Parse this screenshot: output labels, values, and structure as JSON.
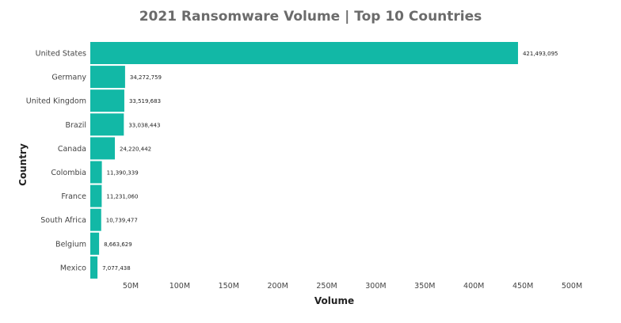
{
  "title": "2021 Ransomware Volume | Top 10 Countries",
  "colors": {
    "bar": "#12b8a6"
  },
  "chart_data": {
    "type": "bar",
    "orientation": "horizontal",
    "title": "2021 Ransomware Volume | Top 10 Countries",
    "xlabel": "Volume",
    "ylabel": "Country",
    "categories": [
      "United States",
      "Germany",
      "United Kingdom",
      "Brazil",
      "Canada",
      "Colombia",
      "France",
      "South Africa",
      "Belgium",
      "Mexico"
    ],
    "values": [
      421493095,
      34272759,
      33519683,
      33038443,
      24220442,
      11390339,
      11231060,
      10739477,
      8663629,
      7077438
    ],
    "value_labels": [
      "421,493,095",
      "34,272,759",
      "33,519,683",
      "33,038,443",
      "24,220,442",
      "11,390,339",
      "11,231,060",
      "10,739,477",
      "8,663,629",
      "7,077,438"
    ],
    "xticks": [
      {
        "value": 50000000,
        "label": "50M"
      },
      {
        "value": 100000000,
        "label": "100M"
      },
      {
        "value": 150000000,
        "label": "150M"
      },
      {
        "value": 200000000,
        "label": "200M"
      },
      {
        "value": 250000000,
        "label": "250M"
      },
      {
        "value": 300000000,
        "label": "300M"
      },
      {
        "value": 350000000,
        "label": "350M"
      },
      {
        "value": 400000000,
        "label": "400M"
      },
      {
        "value": 450000000,
        "label": "450M"
      },
      {
        "value": 500000000,
        "label": "500M"
      }
    ],
    "xlim": [
      0,
      500000000
    ],
    "grid": false,
    "legend": "none"
  }
}
